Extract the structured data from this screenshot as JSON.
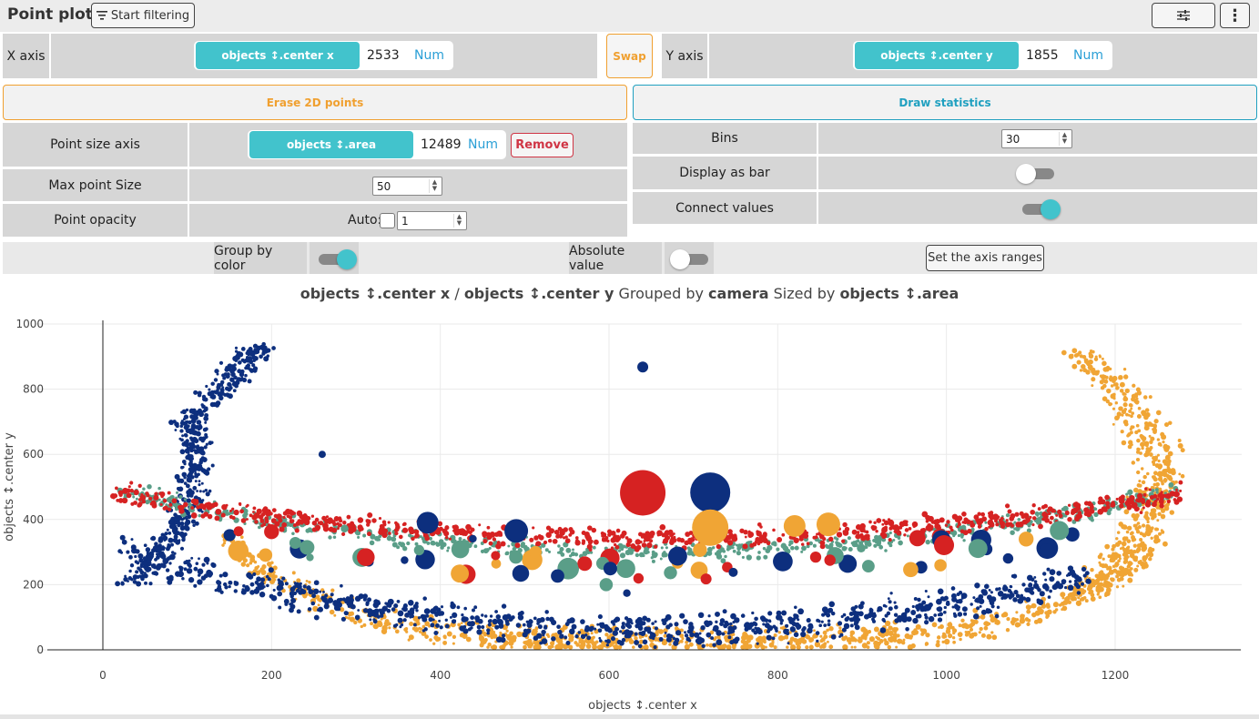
{
  "header": {
    "title": "Point plot",
    "start_filtering": "Start filtering",
    "settings_icon": "sliders-icon",
    "menu_icon": "kebab-icon"
  },
  "axes": {
    "x_label": "X axis",
    "x_var": "objects ↕.center x",
    "x_count": "2533",
    "x_type": "Num",
    "swap": "Swap",
    "y_label": "Y axis",
    "y_var": "objects ↕.center y",
    "y_count": "1855",
    "y_type": "Num"
  },
  "actions": {
    "erase": "Erase 2D points",
    "draw_stats": "Draw statistics"
  },
  "left_opts": {
    "size_axis_label": "Point size axis",
    "size_var": "objects ↕.area",
    "size_count": "12489",
    "size_type": "Num",
    "remove": "Remove",
    "max_size_label": "Max point Size",
    "max_size_value": "50",
    "opacity_label": "Point opacity",
    "opacity_auto": "Auto:",
    "opacity_value": "1"
  },
  "right_opts": {
    "bins_label": "Bins",
    "bins_value": "30",
    "bar_label": "Display as bar",
    "bar_on": false,
    "connect_label": "Connect values",
    "connect_on": true
  },
  "toggles": {
    "group_label": "Group by color",
    "group_on": true,
    "abs_label": "Absolute value",
    "abs_on": false,
    "axis_ranges": "Set the axis ranges"
  },
  "plot_title": {
    "x_var": "objects ↕.center x",
    "sep": "/",
    "y_var": "objects ↕.center y",
    "grouped": "Grouped by",
    "group_var": "camera",
    "sized": "Sized by",
    "size_var": "objects ↕.area"
  },
  "chart_data": {
    "type": "scatter",
    "xlabel": "objects ↕.center x",
    "ylabel": "objects ↕.center y",
    "xlim": [
      -120,
      1350
    ],
    "ylim": [
      0,
      1000
    ],
    "xticks": [
      0,
      200,
      400,
      600,
      800,
      1000,
      1200
    ],
    "yticks": [
      0,
      200,
      400,
      600,
      800,
      1000
    ],
    "group_by": "camera",
    "colors": [
      "#0d2f7e",
      "#d62222",
      "#5a9e88",
      "#f0a535"
    ],
    "large_points": [
      {
        "x": 640,
        "y": 868,
        "size": 6,
        "group": 0
      },
      {
        "x": 640,
        "y": 482,
        "size": 25,
        "group": 1
      },
      {
        "x": 720,
        "y": 483,
        "size": 22,
        "group": 0
      },
      {
        "x": 720,
        "y": 375,
        "size": 20,
        "group": 3
      },
      {
        "x": 385,
        "y": 390,
        "size": 12,
        "group": 0
      },
      {
        "x": 490,
        "y": 365,
        "size": 13,
        "group": 0
      },
      {
        "x": 860,
        "y": 385,
        "size": 13,
        "group": 3
      },
      {
        "x": 820,
        "y": 380,
        "size": 12,
        "group": 3
      },
      {
        "x": 260,
        "y": 600,
        "size": 4,
        "group": 0
      }
    ]
  }
}
